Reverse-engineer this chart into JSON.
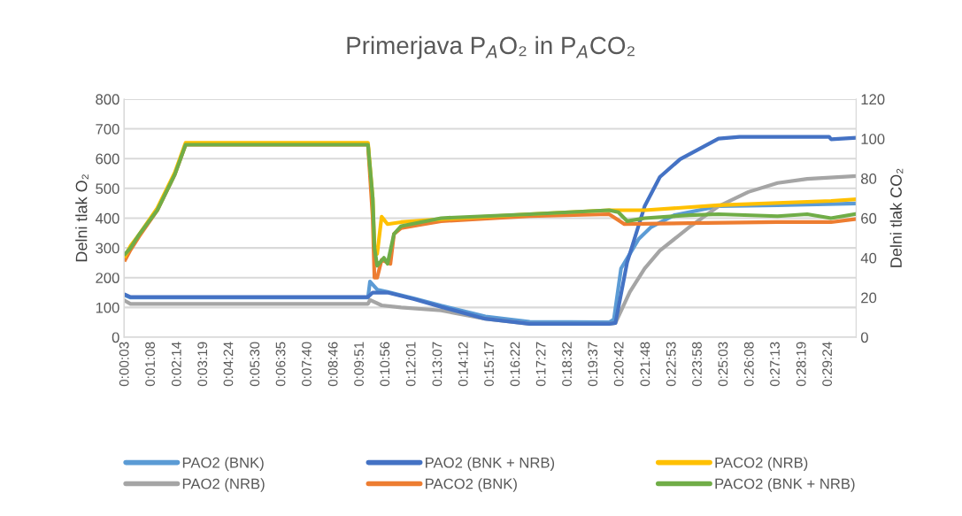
{
  "chart_data": {
    "type": "line",
    "title": "Primerjava P$_{A}$O₂ in P$_{A}$CO₂",
    "ylabel": "Delni tlak O₂",
    "y2label": "Delni tlak CO₂",
    "xlim": [
      0,
      0.5094
    ],
    "ylim": [
      0,
      800
    ],
    "yticks": [
      0,
      100,
      200,
      300,
      400,
      500,
      600,
      700,
      800
    ],
    "y2lim": [
      0,
      120
    ],
    "y2ticks": [
      0,
      20,
      40,
      60,
      80,
      100,
      120
    ],
    "xticks": [
      {
        "value": 0.0008,
        "label": "0:00:03"
      },
      {
        "value": 0.0189,
        "label": "0:01:08"
      },
      {
        "value": 0.0372,
        "label": "0:02:14"
      },
      {
        "value": 0.0553,
        "label": "0:03:19"
      },
      {
        "value": 0.0733,
        "label": "0:04:24"
      },
      {
        "value": 0.0917,
        "label": "0:05:30"
      },
      {
        "value": 0.1097,
        "label": "0:06:35"
      },
      {
        "value": 0.1278,
        "label": "0:07:40"
      },
      {
        "value": 0.1461,
        "label": "0:08:46"
      },
      {
        "value": 0.1642,
        "label": "0:09:51"
      },
      {
        "value": 0.1822,
        "label": "0:10:56"
      },
      {
        "value": 0.2003,
        "label": "0:12:01"
      },
      {
        "value": 0.2186,
        "label": "0:13:07"
      },
      {
        "value": 0.2367,
        "label": "0:14:12"
      },
      {
        "value": 0.2547,
        "label": "0:15:17"
      },
      {
        "value": 0.2728,
        "label": "0:16:22"
      },
      {
        "value": 0.2908,
        "label": "0:17:27"
      },
      {
        "value": 0.3089,
        "label": "0:18:32"
      },
      {
        "value": 0.3269,
        "label": "0:19:37"
      },
      {
        "value": 0.345,
        "label": "0:20:42"
      },
      {
        "value": 0.3633,
        "label": "0:21:48"
      },
      {
        "value": 0.3814,
        "label": "0:22:53"
      },
      {
        "value": 0.3994,
        "label": "0:23:58"
      },
      {
        "value": 0.4175,
        "label": "0:25:03"
      },
      {
        "value": 0.4356,
        "label": "0:26:08"
      },
      {
        "value": 0.4536,
        "label": "0:27:13"
      },
      {
        "value": 0.4719,
        "label": "0:28:19"
      },
      {
        "value": 0.49,
        "label": "0:29:24"
      }
    ],
    "grid": "y",
    "legend": "bottom",
    "line_style": "solid",
    "marker": "none",
    "series": [
      {
        "name": "PAO2 (BNK)",
        "color": "#5b9bd5",
        "x": [
          0.0008,
          0.0045,
          0.1697,
          0.1711,
          0.1761,
          0.1833,
          0.2019,
          0.2206,
          0.2514,
          0.2822,
          0.3375,
          0.3408,
          0.3458,
          0.3519,
          0.3581,
          0.3667,
          0.3828,
          0.4136,
          0.4547,
          0.5086
        ],
        "values": [
          140,
          133,
          133,
          187,
          160,
          152,
          130,
          106,
          70,
          52,
          50,
          60,
          231,
          280,
          330,
          370,
          410,
          440,
          443,
          449
        ]
      },
      {
        "name": "PAO2 (NRB)",
        "color": "#a5a5a5",
        "x": [
          0.0008,
          0.0045,
          0.1697,
          0.1711,
          0.1792,
          0.1928,
          0.2206,
          0.2514,
          0.2822,
          0.3375,
          0.3419,
          0.3519,
          0.3622,
          0.3728,
          0.3931,
          0.4136,
          0.4344,
          0.4547,
          0.4753,
          0.5086
        ],
        "values": [
          122,
          112,
          112,
          125,
          107,
          100,
          90,
          62,
          45,
          45,
          48,
          152,
          231,
          291,
          369,
          440,
          488,
          518,
          532,
          541
        ]
      },
      {
        "name": "PAO2 (BNK + NRB)",
        "color": "#4472c4",
        "x": [
          0.0008,
          0.0045,
          0.1697,
          0.173,
          0.1833,
          0.2019,
          0.2206,
          0.2514,
          0.2822,
          0.3375,
          0.3419,
          0.35,
          0.3622,
          0.3728,
          0.3869,
          0.4136,
          0.4283,
          0.4906,
          0.4919,
          0.5086
        ],
        "values": [
          143,
          135,
          135,
          150,
          150,
          128,
          102,
          62,
          45,
          45,
          48,
          251,
          440,
          538,
          598,
          667,
          673,
          673,
          665,
          670
        ]
      },
      {
        "name": "PACO2 (BNK)",
        "color": "#ed7d31",
        "axis": "y2",
        "x": [
          0.0008,
          0.0045,
          0.0107,
          0.0231,
          0.0353,
          0.0428,
          0.1697,
          0.173,
          0.1742,
          0.1761,
          0.1792,
          0.1853,
          0.1878,
          0.1928,
          0.2206,
          0.2822,
          0.3375,
          0.3439,
          0.3481,
          0.3931,
          0.4547,
          0.4919,
          0.5086
        ],
        "values": [
          39,
          44,
          51,
          64,
          82,
          97,
          97,
          60,
          30,
          30,
          39,
          37,
          52,
          55,
          58.5,
          61,
          62,
          59,
          57,
          57.5,
          58,
          58,
          59.5
        ]
      },
      {
        "name": "PACO2 (NRB)",
        "color": "#ffc000",
        "axis": "y2",
        "x": [
          0.0008,
          0.0045,
          0.0107,
          0.0231,
          0.0353,
          0.0428,
          0.1697,
          0.173,
          0.1742,
          0.1761,
          0.1792,
          0.1833,
          0.1928,
          0.2206,
          0.2822,
          0.3375,
          0.3622,
          0.4136,
          0.4919,
          0.5086
        ],
        "values": [
          41,
          46,
          52,
          65,
          83,
          98,
          98,
          70,
          45,
          42,
          60.7,
          57,
          58,
          59.5,
          62,
          64,
          64,
          66.5,
          68.7,
          69.5
        ]
      },
      {
        "name": "PACO2 (BNK + NRB)",
        "color": "#70ad47",
        "axis": "y2",
        "x": [
          0.0008,
          0.0045,
          0.0107,
          0.0231,
          0.0353,
          0.0428,
          0.1697,
          0.173,
          0.1742,
          0.1761,
          0.1808,
          0.1833,
          0.1878,
          0.1928,
          0.2206,
          0.2822,
          0.3375,
          0.3439,
          0.35,
          0.3622,
          0.3931,
          0.4136,
          0.4547,
          0.4753,
          0.4919,
          0.5086
        ],
        "values": [
          42,
          45,
          52,
          64,
          82,
          97,
          97,
          70,
          45,
          36,
          40,
          37,
          52,
          56,
          60,
          62,
          64,
          63,
          58.5,
          60,
          61.5,
          62,
          61,
          62,
          60,
          62
        ]
      }
    ]
  }
}
